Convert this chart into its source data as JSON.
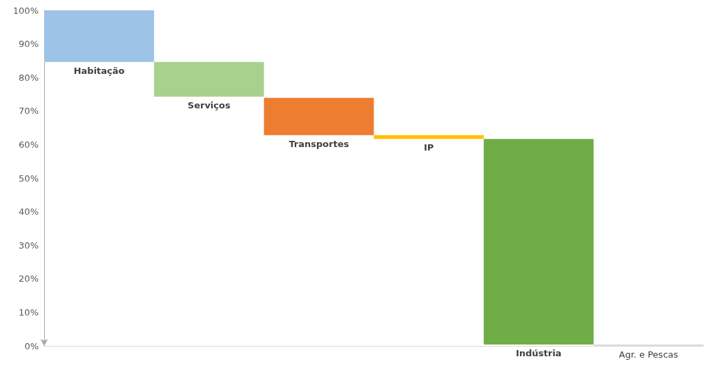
{
  "chart_data": {
    "type": "bar",
    "categories": [
      "Habitação",
      "Serviços",
      "Transportes",
      "IP",
      "Indústria",
      "Agr. e Pescas"
    ],
    "base": [
      84.6,
      74.3,
      62.8,
      61.7,
      0.4,
      0
    ],
    "values": [
      15.4,
      10.3,
      11.1,
      1.1,
      61.3,
      0.4
    ],
    "colors": [
      "#9dc3e6",
      "#a9d18e",
      "#ed7d31",
      "#ffc000",
      "#70ad47",
      "#d9d9d9"
    ],
    "ylim": [
      0,
      100
    ],
    "yticks": [
      {
        "value": 0,
        "label": "0%"
      },
      {
        "value": 10,
        "label": "10%"
      },
      {
        "value": 20,
        "label": "20%"
      },
      {
        "value": 30,
        "label": "30%"
      },
      {
        "value": 40,
        "label": "40%"
      },
      {
        "value": 50,
        "label": "50%"
      },
      {
        "value": 60,
        "label": "60%"
      },
      {
        "value": 70,
        "label": "70%"
      },
      {
        "value": 80,
        "label": "80%"
      },
      {
        "value": 90,
        "label": "90%"
      },
      {
        "value": 100,
        "label": "100%"
      }
    ],
    "grid": false
  }
}
